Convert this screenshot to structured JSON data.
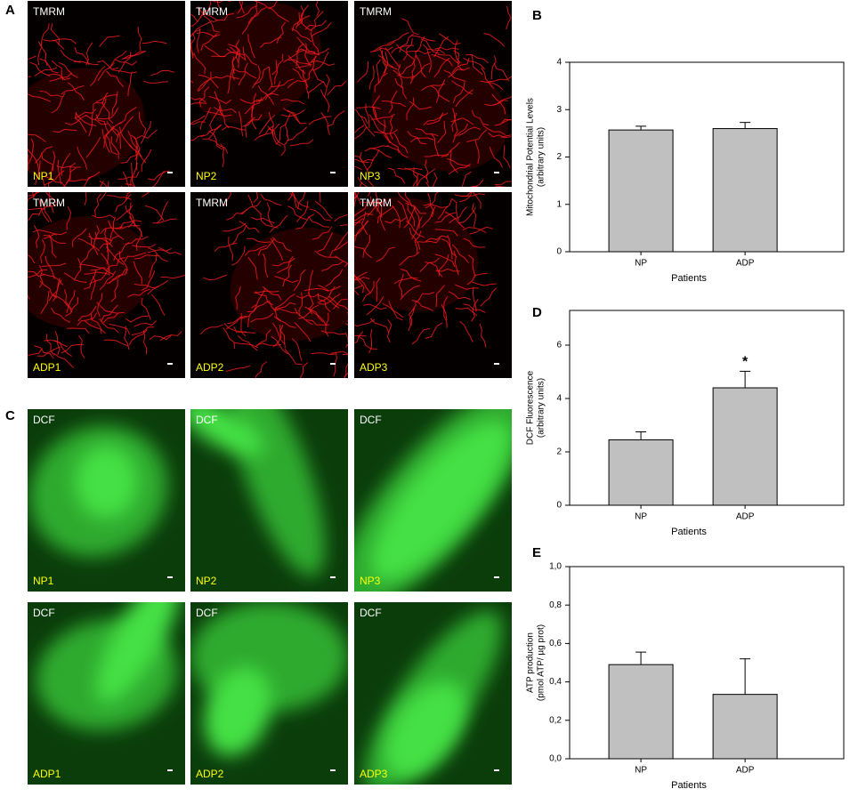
{
  "panels": [
    {
      "label": "A",
      "images": [
        {
          "stain": "TMRM",
          "name": "NP1"
        },
        {
          "stain": "TMRM",
          "name": "NP2"
        },
        {
          "stain": "TMRM",
          "name": "NP3"
        },
        {
          "stain": "TMRM",
          "name": "ADP1"
        },
        {
          "stain": "TMRM",
          "name": "ADP2"
        },
        {
          "stain": "TMRM",
          "name": "ADP3"
        }
      ]
    },
    {
      "label": "C",
      "images": [
        {
          "stain": "DCF",
          "name": "NP1"
        },
        {
          "stain": "DCF",
          "name": "NP2"
        },
        {
          "stain": "DCF",
          "name": "NP3"
        },
        {
          "stain": "DCF",
          "name": "ADP1"
        },
        {
          "stain": "DCF",
          "name": "ADP2"
        },
        {
          "stain": "DCF",
          "name": "ADP3"
        }
      ]
    }
  ],
  "chart_data": [
    {
      "type": "bar",
      "panel": "B",
      "x_label": "Patients",
      "y_label": [
        "Mitochondrial Potential Levels",
        "(arbitrary units)"
      ],
      "categories": [
        "NP",
        "ADP"
      ],
      "values": [
        2.57,
        2.6
      ],
      "errors": [
        0.08,
        0.13
      ],
      "color": "#c0c0c0",
      "ylim": [
        0,
        4
      ],
      "yticks": [
        0,
        1,
        2,
        3,
        4
      ]
    },
    {
      "type": "bar",
      "panel": "D",
      "x_label": "Patients",
      "y_label": [
        "DCF Fluorescence",
        "(arbitrary units)"
      ],
      "categories": [
        "NP",
        "ADP"
      ],
      "values": [
        2.45,
        4.4
      ],
      "errors": [
        0.3,
        0.62
      ],
      "color": "#c0c0c0",
      "annotations": [
        "",
        "*"
      ],
      "ylim": [
        0,
        7.3
      ],
      "yticks": [
        0,
        2,
        4,
        6
      ]
    },
    {
      "type": "bar",
      "panel": "E",
      "x_label": "Patients",
      "y_label": [
        "ATP production",
        "(pmol ATP/ µg prot)"
      ],
      "categories": [
        "NP",
        "ADP"
      ],
      "values": [
        0.49,
        0.335
      ],
      "errors": [
        0.065,
        0.185
      ],
      "color": "#c0c0c0",
      "ylim": [
        0,
        1
      ],
      "yticks": [
        {
          "value": 0,
          "label": "0,0"
        },
        {
          "value": 0.2,
          "label": "0,2"
        },
        {
          "value": 0.4,
          "label": "0,4"
        },
        {
          "value": 0.6,
          "label": "0,6"
        },
        {
          "value": 0.8,
          "label": "0,8"
        },
        {
          "value": 1,
          "label": "1,0"
        }
      ]
    }
  ]
}
